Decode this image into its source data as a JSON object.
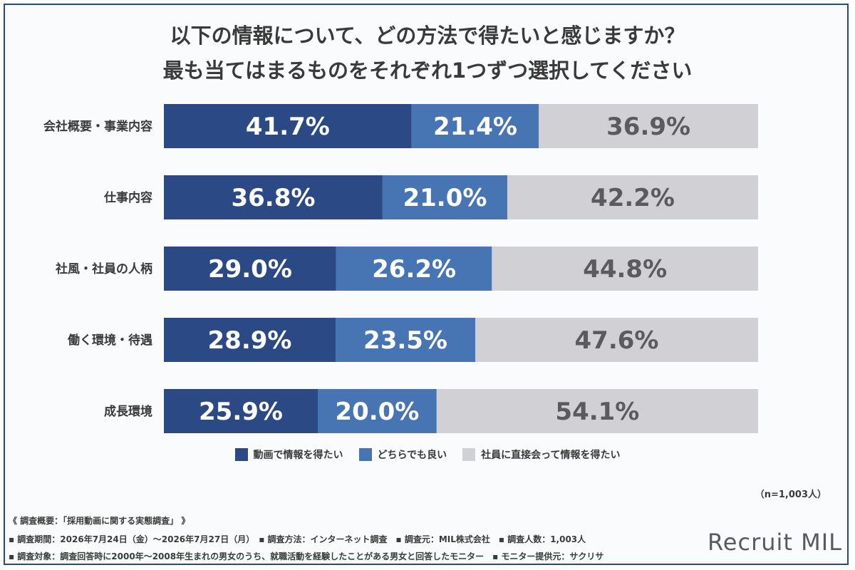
{
  "title_lines": [
    "以下の情報について、どの方法で得たいと感じますか？",
    "最も当てはまるものをそれぞれ1つずつ選択してください"
  ],
  "legend": [
    {
      "label": "動画で情報を得たい",
      "color": "#2b4a85"
    },
    {
      "label": "どちらでも良い",
      "color": "#4775b4"
    },
    {
      "label": "社員に直接会って情報を得たい",
      "color": "#d1d0d4"
    }
  ],
  "sample_size": "（n=1,003人）",
  "footnotes": [
    "《 調査概要：「採用動画に関する実態調査」 》",
    "▪ 調査期間：2026年7月24日（金）〜2026年7月27日（月）　▪ 調査方法：インターネット調査　▪ 調査元：MIL株式会社　▪ 調査人数：1,003人",
    "▪ 調査対象：調査回答時に2000年〜2008年生まれの男女のうち、就職活動を経験したことがある男女と回答したモニター　▪ モニター提供元：サクリサ"
  ],
  "logo": "Recruit MIL",
  "chart_data": {
    "type": "bar",
    "orientation": "horizontal",
    "stacked": true,
    "categories": [
      "会社概要・事業内容",
      "仕事内容",
      "社風・社員の人柄",
      "働く環境・待遇",
      "成長環境"
    ],
    "series": [
      {
        "name": "動画で情報を得たい",
        "values": [
          41.7,
          36.8,
          29.0,
          28.9,
          25.9
        ],
        "color": "#2b4a85",
        "label_color": "#ffffff"
      },
      {
        "name": "どちらでも良い",
        "values": [
          21.4,
          21.0,
          26.2,
          23.5,
          20.0
        ],
        "color": "#4775b4",
        "label_color": "#ffffff"
      },
      {
        "name": "社員に直接会って情報を得たい",
        "values": [
          36.9,
          42.2,
          44.8,
          47.6,
          54.1
        ],
        "color": "#d1d0d4",
        "label_color": "#5a5a5f"
      }
    ],
    "value_suffix": "%",
    "xlim": [
      0,
      100
    ],
    "grid": false,
    "legend_position": "bottom"
  }
}
